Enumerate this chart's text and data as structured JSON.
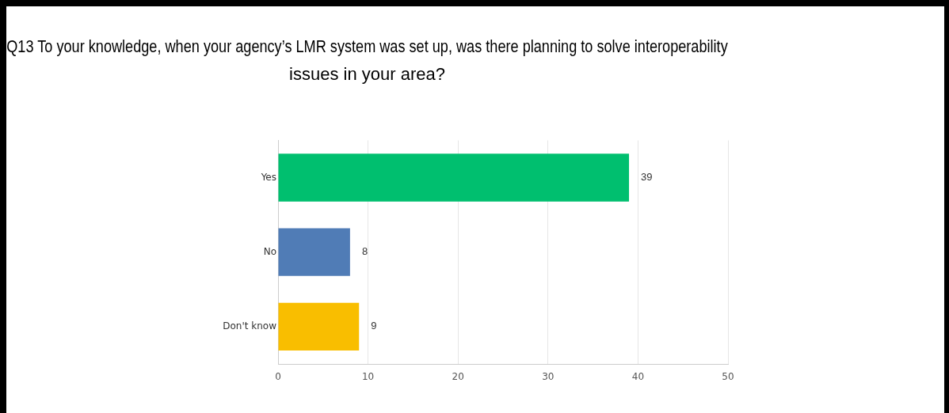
{
  "chart_data": {
    "type": "bar",
    "orientation": "horizontal",
    "title": "Q13 To your knowledge, when your agency’s LMR system was set up, was there planning to solve interoperability issues in your area?",
    "categories": [
      "Yes",
      "No",
      "Don't know"
    ],
    "values": [
      39,
      8,
      9
    ],
    "colors": [
      "#00bf6f",
      "#507cb6",
      "#f9be00"
    ],
    "xlim": [
      0,
      50
    ],
    "xticks": [
      0,
      10,
      20,
      30,
      40,
      50
    ],
    "grid": "x",
    "data_labels": true
  }
}
